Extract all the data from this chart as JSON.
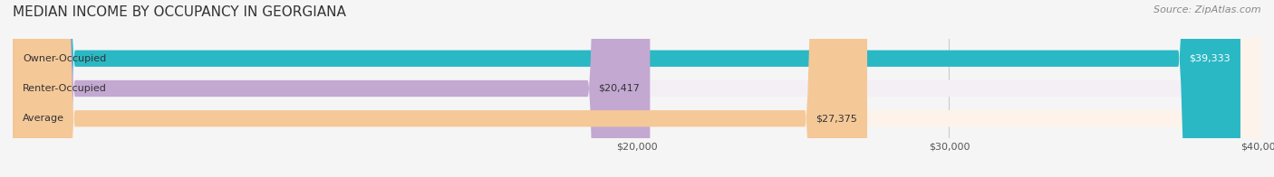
{
  "title": "MEDIAN INCOME BY OCCUPANCY IN GEORGIANA",
  "source": "Source: ZipAtlas.com",
  "categories": [
    "Owner-Occupied",
    "Renter-Occupied",
    "Average"
  ],
  "values": [
    39333,
    20417,
    27375
  ],
  "labels": [
    "$39,333",
    "$20,417",
    "$27,375"
  ],
  "bar_colors": [
    "#2ab8c4",
    "#c3a8d1",
    "#f5c898"
  ],
  "bar_bg_colors": [
    "#e8f7f8",
    "#f3eff5",
    "#fdf3ea"
  ],
  "xlim": [
    0,
    40000
  ],
  "xticks": [
    20000,
    30000,
    40000
  ],
  "xticklabels": [
    "$20,000",
    "$30,000",
    "$40,000"
  ],
  "title_fontsize": 11,
  "source_fontsize": 8,
  "label_fontsize": 8,
  "bar_height": 0.55,
  "fig_width": 14.06,
  "fig_height": 1.96,
  "dpi": 100
}
